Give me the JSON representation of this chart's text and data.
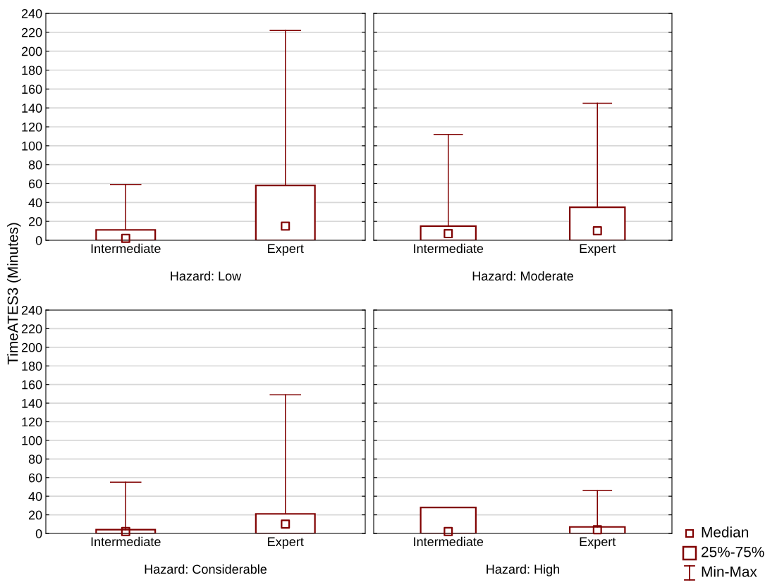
{
  "chart_data": [
    {
      "type": "box",
      "xlabel": "Hazard: Low",
      "ylabel": "TimeATES3 (Minutes)",
      "categories": [
        "Intermediate",
        "Expert"
      ],
      "color": "#800000",
      "ylim": [
        0,
        240
      ],
      "yticks": [
        0,
        20,
        40,
        60,
        80,
        100,
        120,
        140,
        160,
        180,
        200,
        220,
        240
      ],
      "grid": "y",
      "marker": "square",
      "boxes": [
        {
          "low": 0,
          "q1": 0,
          "median": 2,
          "q3": 11,
          "high": 59
        },
        {
          "low": 0,
          "q1": 0,
          "median": 15,
          "q3": 58,
          "high": 222
        }
      ]
    },
    {
      "type": "box",
      "xlabel": "Hazard: Moderate",
      "categories": [
        "Intermediate",
        "Expert"
      ],
      "color": "#800000",
      "ylim": [
        0,
        240
      ],
      "yticks": [
        0,
        20,
        40,
        60,
        80,
        100,
        120,
        140,
        160,
        180,
        200,
        220,
        240
      ],
      "grid": "y",
      "marker": "square",
      "tick_labels": "x",
      "boxes": [
        {
          "low": 0,
          "q1": 0,
          "median": 7,
          "q3": 15,
          "high": 112
        },
        {
          "low": 0,
          "q1": 0,
          "median": 10,
          "q3": 35,
          "high": 145
        }
      ]
    },
    {
      "type": "box",
      "xlabel": "Hazard: Considerable",
      "categories": [
        "Intermediate",
        "Expert"
      ],
      "color": "#800000",
      "ylim": [
        0,
        240
      ],
      "yticks": [
        0,
        20,
        40,
        60,
        80,
        100,
        120,
        140,
        160,
        180,
        200,
        220,
        240
      ],
      "grid": "y",
      "marker": "square",
      "boxes": [
        {
          "low": 0,
          "q1": 0,
          "median": 2,
          "q3": 4,
          "high": 55
        },
        {
          "low": 0,
          "q1": 0,
          "median": 10,
          "q3": 21,
          "high": 149
        }
      ]
    },
    {
      "type": "box",
      "xlabel": "Hazard: High",
      "categories": [
        "Intermediate",
        "Expert"
      ],
      "color": "#800000",
      "ylim": [
        0,
        240
      ],
      "yticks": [
        0,
        20,
        40,
        60,
        80,
        100,
        120,
        140,
        160,
        180,
        200,
        220,
        240
      ],
      "grid": "y",
      "marker": "square",
      "tick_labels": "x",
      "annotations": [
        "Median",
        "25%-75%",
        "Min-Max"
      ],
      "boxes": [
        {
          "low": 0,
          "q1": 0,
          "median": 2,
          "q3": 28,
          "high": 28
        },
        {
          "low": 0,
          "q1": 0,
          "median": 4,
          "q3": 7,
          "high": 46
        }
      ]
    }
  ]
}
